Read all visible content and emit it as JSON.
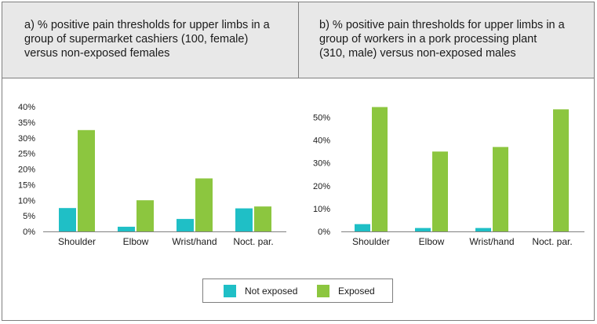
{
  "colors": {
    "not_exposed": "#1fbfc6",
    "exposed": "#8cc63f",
    "axis": "#808080"
  },
  "legend": {
    "not_exposed": "Not exposed",
    "exposed": "Exposed"
  },
  "chart_data": [
    {
      "type": "bar",
      "title": "a) % positive pain thresholds for upper limbs in a\ngroup of supermarket cashiers (100, female)\nversus non-exposed females",
      "categories": [
        "Shoulder",
        "Elbow",
        "Wrist/hand",
        "Noct. par."
      ],
      "series": [
        {
          "name": "Not exposed",
          "values": [
            7.5,
            1.5,
            4.0,
            7.4
          ]
        },
        {
          "name": "Exposed",
          "values": [
            32.5,
            10.0,
            17.0,
            8.0
          ]
        }
      ],
      "ylim": [
        0,
        40
      ],
      "yticks": [
        "0%",
        "5%",
        "10%",
        "15%",
        "20%",
        "25%",
        "30%",
        "35%",
        "40%"
      ],
      "ytick_values": [
        0,
        5,
        10,
        15,
        20,
        25,
        30,
        35,
        40
      ],
      "legend": "bottom"
    },
    {
      "type": "bar",
      "title": "b) % positive pain thresholds for upper limbs in a\ngroup of workers in a pork processing plant\n(310, male) versus non-exposed males",
      "categories": [
        "Shoulder",
        "Elbow",
        "Wrist/hand",
        "Noct. par."
      ],
      "series": [
        {
          "name": "Not exposed",
          "values": [
            3.2,
            1.5,
            1.5,
            0
          ]
        },
        {
          "name": "Exposed",
          "values": [
            54.5,
            35.0,
            37.0,
            53.5
          ]
        }
      ],
      "ylim": [
        0,
        55
      ],
      "yticks": [
        "0%",
        "10%",
        "20%",
        "30%",
        "40%",
        "50%"
      ],
      "ytick_values": [
        0,
        10,
        20,
        30,
        40,
        50
      ],
      "legend": "bottom"
    }
  ]
}
